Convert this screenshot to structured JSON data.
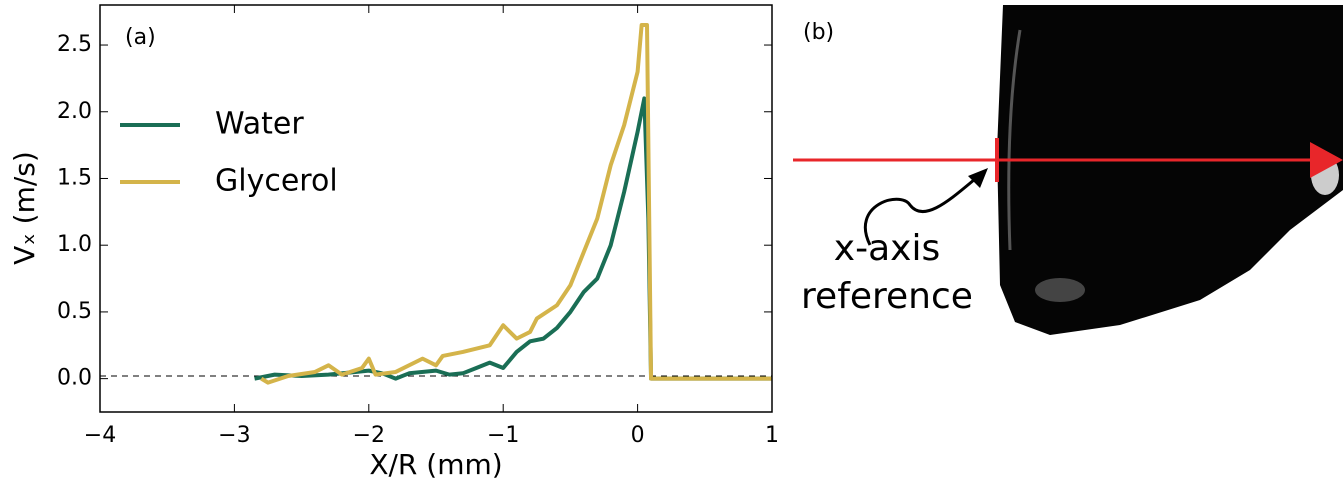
{
  "chart_data": {
    "type": "line",
    "panel_label": "(a)",
    "xlabel": "X/R (mm)",
    "ylabel": "Vₓ (m/s)",
    "xlim": [
      -4,
      1
    ],
    "xticks": [
      {
        "value": -4,
        "label": "−4"
      },
      {
        "value": -3,
        "label": "−3"
      },
      {
        "value": -2,
        "label": "−2"
      },
      {
        "value": -1,
        "label": "−1"
      },
      0,
      1
    ],
    "ylim": [
      -0.25,
      2.8
    ],
    "yticks": [
      {
        "value": 0,
        "label": "0.0"
      },
      0.5,
      {
        "value": 1,
        "label": "1.0"
      },
      1.5,
      {
        "value": 2,
        "label": "2.0"
      },
      2.5
    ],
    "reference_line": 0.02,
    "legend": "upper left",
    "series": [
      {
        "name": "Water",
        "color": "#1a6e55",
        "x": [
          -2.85,
          -2.7,
          -2.5,
          -2.3,
          -2.1,
          -2.0,
          -1.9,
          -1.8,
          -1.7,
          -1.5,
          -1.4,
          -1.3,
          -1.2,
          -1.1,
          -1.0,
          -0.9,
          -0.8,
          -0.7,
          -0.6,
          -0.5,
          -0.4,
          -0.3,
          -0.2,
          -0.1,
          0,
          0.05,
          0.08,
          0.1,
          0.3,
          1
        ],
        "values": [
          0,
          0.03,
          0.02,
          0.03,
          0.05,
          0.06,
          0.04,
          0,
          0.04,
          0.06,
          0.03,
          0.04,
          0.08,
          0.12,
          0.08,
          0.2,
          0.28,
          0.3,
          0.38,
          0.5,
          0.65,
          0.75,
          1.0,
          1.4,
          1.85,
          2.1,
          1.2,
          0,
          0,
          0
        ]
      },
      {
        "name": "Glycerol",
        "color": "#d4b44a",
        "x": [
          -2.8,
          -2.75,
          -2.6,
          -2.4,
          -2.3,
          -2.2,
          -2.05,
          -2.0,
          -1.95,
          -1.8,
          -1.6,
          -1.5,
          -1.45,
          -1.3,
          -1.1,
          -1.0,
          -0.9,
          -0.8,
          -0.75,
          -0.6,
          -0.5,
          -0.4,
          -0.3,
          -0.2,
          -0.1,
          0,
          0.03,
          0.07,
          0.1,
          0.3,
          1
        ],
        "values": [
          0,
          -0.03,
          0.02,
          0.05,
          0.1,
          0.03,
          0.08,
          0.15,
          0.03,
          0.05,
          0.15,
          0.1,
          0.17,
          0.2,
          0.25,
          0.4,
          0.3,
          0.35,
          0.45,
          0.55,
          0.7,
          0.95,
          1.2,
          1.6,
          1.9,
          2.3,
          2.65,
          2.65,
          0,
          0,
          0
        ]
      }
    ]
  },
  "panel_b": {
    "label": "(b)",
    "annotation": [
      "x-axis",
      "reference"
    ]
  }
}
